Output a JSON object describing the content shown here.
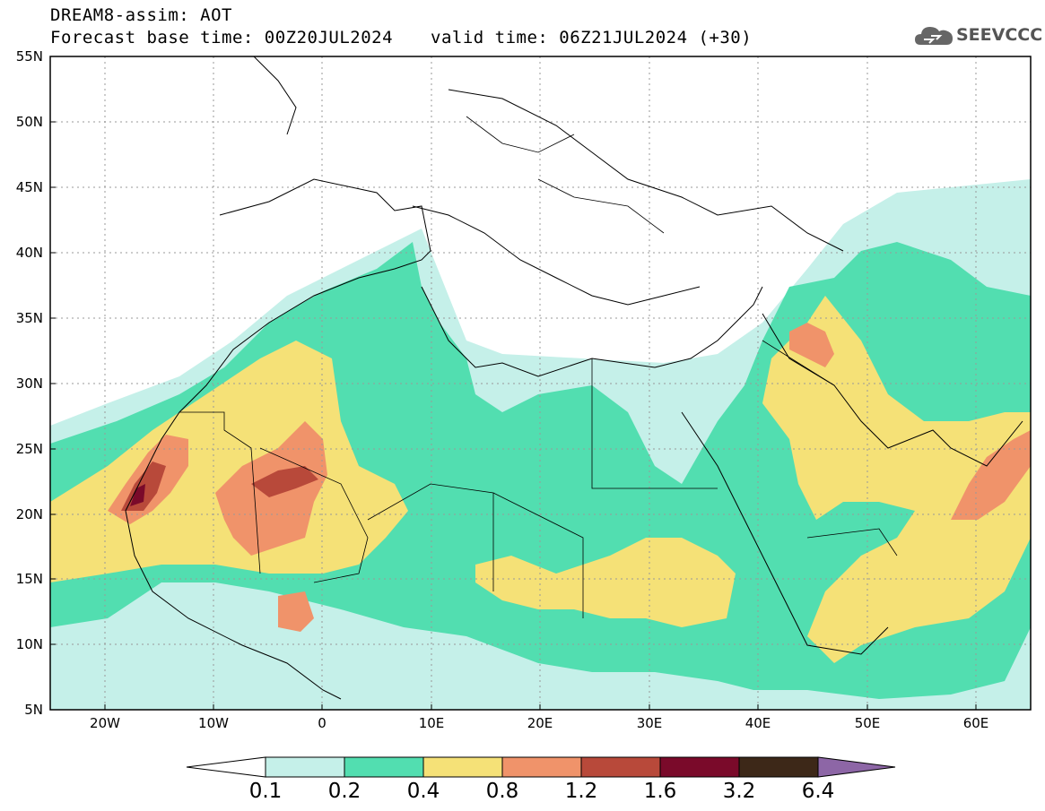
{
  "header": {
    "title": "DREAM8-assim: AOT",
    "forecast_base": "Forecast base time: 00Z20JUL2024",
    "valid_time": "valid time: 06Z21JUL2024 (+30)"
  },
  "logo": {
    "text": "SEEVCCC",
    "icon": "cloud-icon"
  },
  "map": {
    "lat_labels": [
      "55N",
      "50N",
      "45N",
      "40N",
      "35N",
      "30N",
      "25N",
      "20N",
      "15N",
      "10N",
      "5N"
    ],
    "lon_labels": [
      "20W",
      "10W",
      "0",
      "10E",
      "20E",
      "30E",
      "40E",
      "50E",
      "60E"
    ],
    "lat_range": [
      5,
      55
    ],
    "lon_range": [
      -25,
      65
    ],
    "grid": "dotted"
  },
  "colorbar": {
    "labels": [
      "0.1",
      "0.2",
      "0.4",
      "0.8",
      "1.2",
      "1.6",
      "3.2",
      "6.4"
    ],
    "colors": [
      "#ffffff",
      "#c5f0e9",
      "#52deb0",
      "#f5e177",
      "#f0936a",
      "#b8493a",
      "#7a0a2a",
      "#3d2818",
      "#8d66a6"
    ]
  }
}
